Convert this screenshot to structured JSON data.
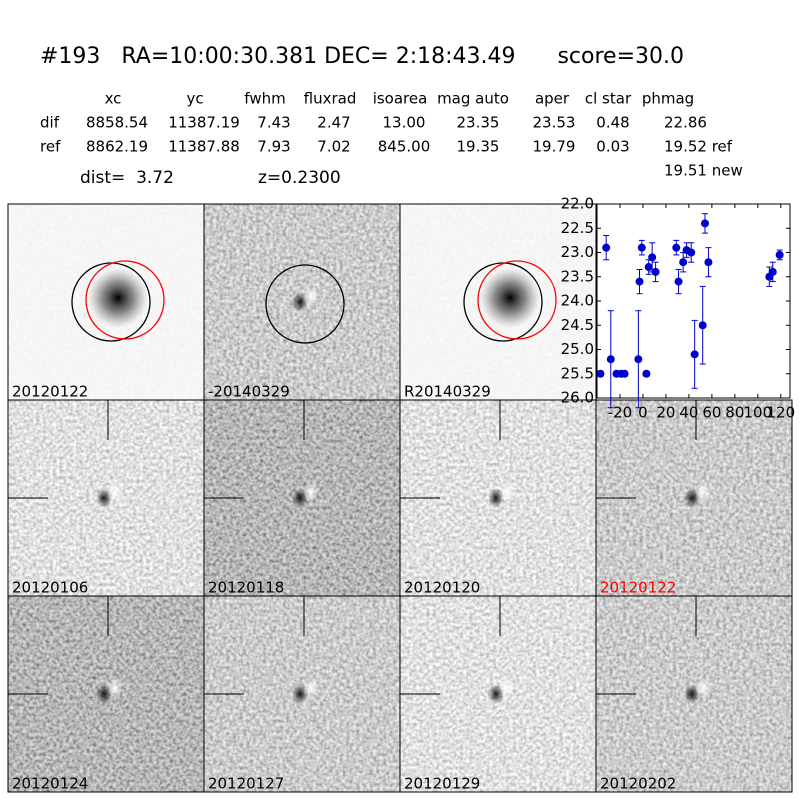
{
  "header": {
    "title": "#193   RA=10:00:30.381 DEC= 2:18:43.49      score=30.0"
  },
  "table": {
    "columns": [
      "xc",
      "yc",
      "fwhm",
      "fluxrad",
      "isoarea",
      "mag auto",
      "aper",
      "cl star",
      "phmag"
    ],
    "rows": [
      [
        "dif",
        "8858.54",
        "11387.19",
        "7.43",
        "2.47",
        "13.00",
        "23.35",
        "23.53",
        "0.48",
        "22.86"
      ],
      [
        "ref",
        "8862.19",
        "11387.88",
        "7.93",
        "7.02",
        "845.00",
        "19.35",
        "19.79",
        "0.03",
        "19.52 ref"
      ]
    ],
    "extra": "19.51 new"
  },
  "info": {
    "dist": "dist=  3.72",
    "z": "z=0.2300"
  },
  "panels": [
    {
      "label": "20120122",
      "label_color": "#000000"
    },
    {
      "label": "-20140329",
      "label_color": "#000000"
    },
    {
      "label": "R20140329",
      "label_color": "#000000"
    },
    {
      "label": "20120106",
      "label_color": "#000000"
    },
    {
      "label": "20120118",
      "label_color": "#000000"
    },
    {
      "label": "20120120",
      "label_color": "#000000"
    },
    {
      "label": "20120122",
      "label_color": "#ff0000"
    },
    {
      "label": "20120124",
      "label_color": "#000000"
    },
    {
      "label": "20120127",
      "label_color": "#000000"
    },
    {
      "label": "20120129",
      "label_color": "#000000"
    },
    {
      "label": "20120202",
      "label_color": "#000000"
    }
  ],
  "chart_data": {
    "type": "scatter",
    "color": "#0000cc",
    "x": [
      -37,
      -32,
      -28,
      -23,
      -19,
      -16,
      -4,
      -3,
      -1,
      3,
      5,
      8,
      11,
      29,
      31,
      35,
      38,
      42,
      45,
      52,
      54,
      57,
      110,
      113,
      119
    ],
    "values": [
      25.5,
      22.9,
      25.2,
      25.5,
      25.5,
      25.5,
      25.2,
      23.6,
      22.9,
      25.5,
      23.3,
      23.1,
      23.4,
      22.9,
      23.6,
      23.2,
      22.95,
      23.0,
      25.1,
      24.5,
      22.4,
      23.2,
      23.5,
      23.4,
      23.05
    ],
    "errors": [
      0.05,
      0.25,
      1.0,
      0.05,
      0.05,
      0.05,
      1.0,
      0.25,
      0.15,
      0.05,
      0.15,
      0.3,
      0.2,
      0.15,
      0.25,
      0.2,
      0.15,
      0.2,
      0.7,
      0.8,
      0.2,
      0.3,
      0.2,
      0.2,
      0.1
    ],
    "xlim": [
      -40,
      128
    ],
    "ylim": [
      26.0,
      22.0
    ],
    "xticks": [
      -20,
      0,
      20,
      40,
      60,
      80,
      100,
      120
    ],
    "yticks": [
      {
        "value": 22,
        "label": "22.0"
      },
      {
        "value": 22.5,
        "label": "22.5"
      },
      {
        "value": 23,
        "label": "23.0"
      },
      {
        "value": 23.5,
        "label": "23.5"
      },
      {
        "value": 24,
        "label": "24.0"
      },
      {
        "value": 24.5,
        "label": "24.5"
      },
      {
        "value": 25,
        "label": "25.0"
      },
      {
        "value": 25.5,
        "label": "25.5"
      },
      {
        "value": 26,
        "label": "26.0"
      }
    ]
  }
}
